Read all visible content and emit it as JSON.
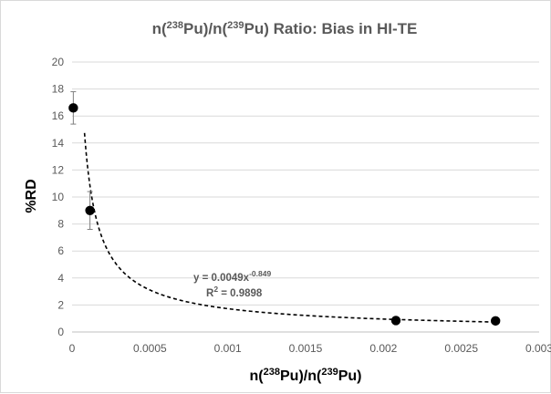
{
  "chart_data": {
    "type": "scatter",
    "title": {
      "pre": "n(",
      "sup1": "238",
      "mid": "Pu)/n(",
      "sup2": "239",
      "post": "Pu) Ratio: Bias in HI-TE"
    },
    "xlabel": {
      "pre": "n(",
      "sup1": "238",
      "mid": "Pu)/n(",
      "sup2": "239",
      "post": "Pu)"
    },
    "ylabel": "%RD",
    "xlim": [
      0,
      0.003
    ],
    "ylim": [
      0,
      20
    ],
    "x_ticks": [
      0,
      0.0005,
      0.001,
      0.0015,
      0.002,
      0.0025,
      0.003
    ],
    "x_tick_labels": [
      "0",
      "0.0005",
      "0.001",
      "0.0015",
      "0.002",
      "0.0025",
      "0.003"
    ],
    "y_ticks": [
      0,
      2,
      4,
      6,
      8,
      10,
      12,
      14,
      16,
      18,
      20
    ],
    "y_tick_labels": [
      "0",
      "2",
      "4",
      "6",
      "8",
      "10",
      "12",
      "14",
      "16",
      "18",
      "20"
    ],
    "grid": {
      "horizontal": true,
      "vertical": false
    },
    "points": [
      {
        "x": 8e-06,
        "y": 16.6,
        "err": 1.2
      },
      {
        "x": 0.000115,
        "y": 9.0,
        "err": 1.4
      },
      {
        "x": 0.00208,
        "y": 0.85,
        "err": 0
      },
      {
        "x": 0.00272,
        "y": 0.82,
        "err": 0
      }
    ],
    "trendline": {
      "type": "power",
      "a": 0.0049,
      "b": -0.849,
      "x_from": 8e-05,
      "x_to": 0.0027,
      "style": "dashed"
    },
    "annotation": {
      "equation_pre": "y = 0.0049x",
      "equation_exp": "-0.849",
      "r2_pre": "R",
      "r2_sup": "2",
      "r2_post": " = 0.9898"
    },
    "colors": {
      "marker": "#000000",
      "grid": "#d9d9d9",
      "axis": "#bfbfbf",
      "text": "#595959",
      "error_bar": "#7f7f7f"
    }
  }
}
